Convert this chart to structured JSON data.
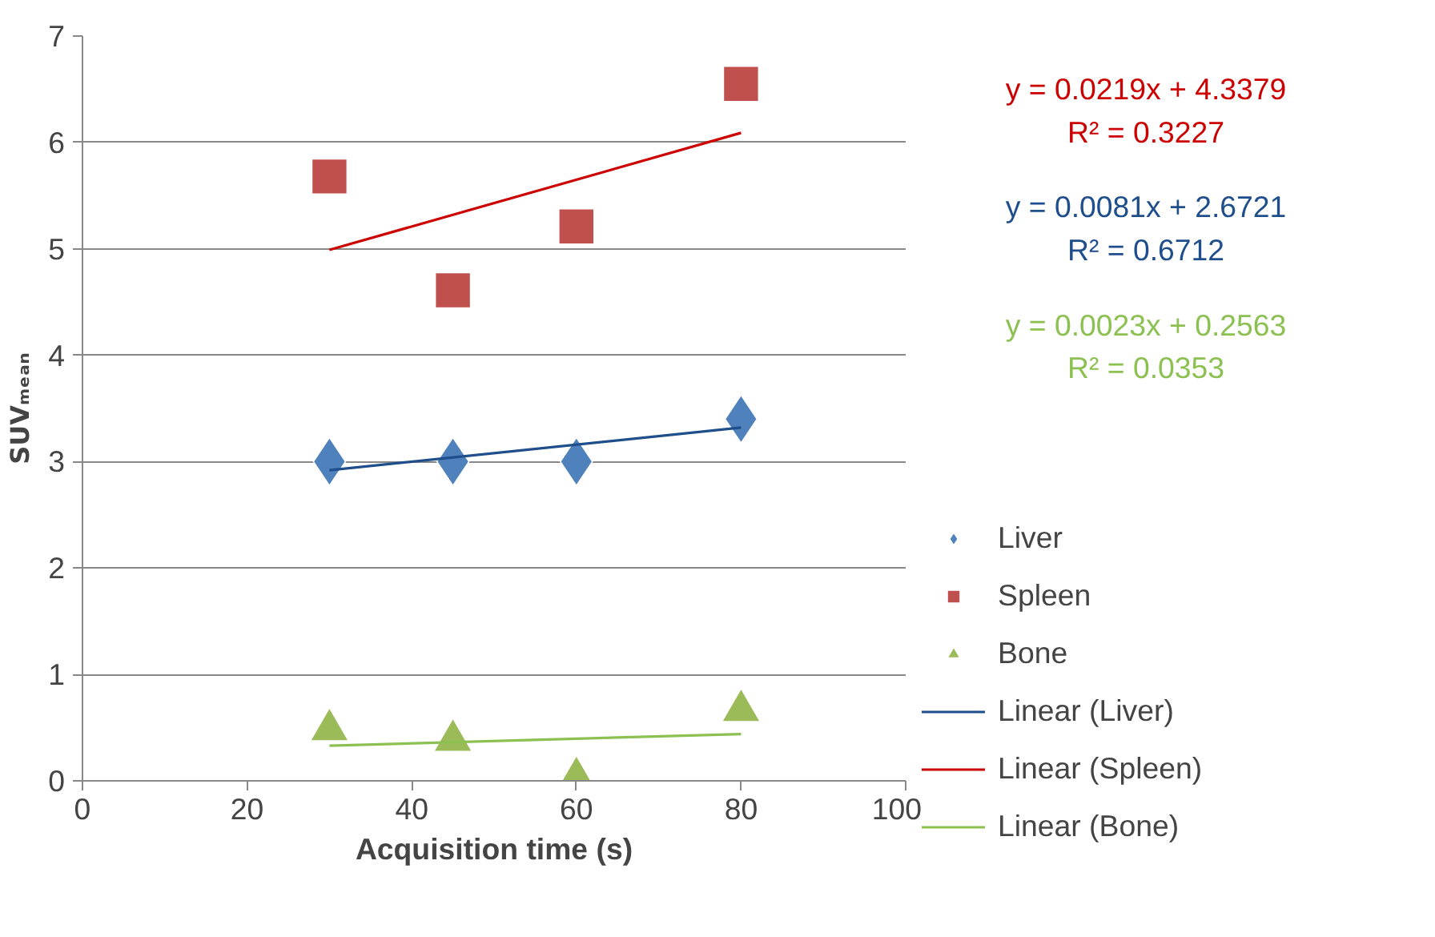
{
  "chart_data": {
    "type": "scatter",
    "xlabel": "Acquisition time (s)",
    "ylabel": "SUVₘₑₐₙ",
    "xlim": [
      0,
      100
    ],
    "xticks": [
      0,
      20,
      40,
      60,
      80,
      100
    ],
    "ylim": [
      0,
      7
    ],
    "yticks": [
      0,
      1,
      2,
      3,
      4,
      5,
      6,
      7
    ],
    "grid": "y",
    "legend": "right",
    "series": [
      {
        "name": "Liver",
        "marker": "diamond",
        "color": "#4f81bd",
        "x": [
          30,
          45,
          60,
          80
        ],
        "values": [
          3.0,
          3.0,
          3.0,
          3.4
        ]
      },
      {
        "name": "Spleen",
        "marker": "square",
        "color": "#c0504d",
        "x": [
          30,
          45,
          60,
          80
        ],
        "values": [
          5.68,
          4.61,
          5.21,
          6.55
        ]
      },
      {
        "name": "Bone",
        "marker": "triangle",
        "color": "#9bbb59",
        "x": [
          30,
          45,
          60,
          80
        ],
        "values": [
          0.48,
          0.38,
          0.03,
          0.66
        ]
      },
      {
        "name": "Linear (Liver)",
        "type": "line",
        "color": "#1f4e8c",
        "x": [
          30,
          80
        ],
        "values": [
          2.92,
          3.32
        ]
      },
      {
        "name": "Linear (Spleen)",
        "type": "line",
        "color": "#cc0000",
        "x": [
          30,
          80
        ],
        "values": [
          4.99,
          6.09
        ]
      },
      {
        "name": "Linear (Bone)",
        "type": "line",
        "color": "#8cc152",
        "x": [
          30,
          80
        ],
        "values": [
          0.33,
          0.44
        ]
      }
    ],
    "annotations": [
      "y = 0.0219x + 4.3379\nR² = 0.3227",
      "y = 0.0081x + 2.6721\nR² = 0.6712",
      "y = 0.0023x + 0.2563\nR² = 0.0353"
    ]
  }
}
